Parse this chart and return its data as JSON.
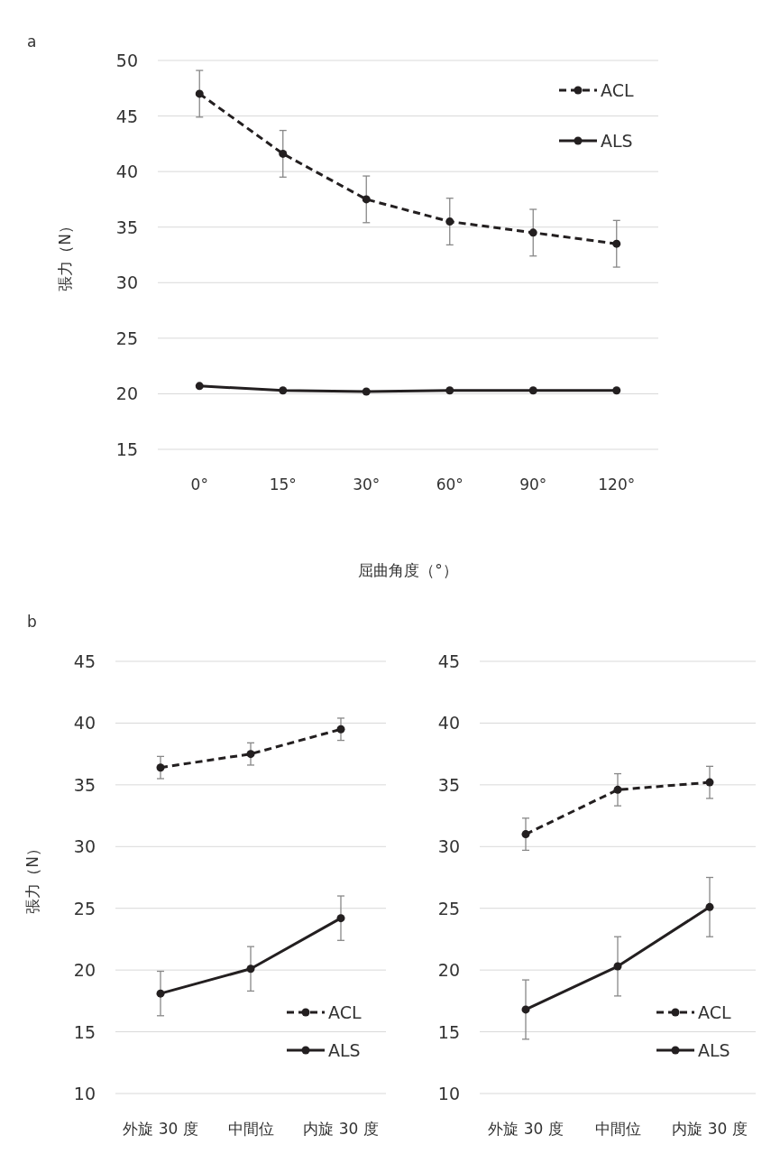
{
  "chart_data": [
    {
      "type": "line",
      "title": "a",
      "xlabel": "屈曲角度（°）",
      "ylabel": "張力（N）",
      "categories": [
        "0°",
        "15°",
        "30°",
        "60°",
        "90°",
        "120°"
      ],
      "ylim": [
        15,
        50
      ],
      "yticks": [
        15,
        20,
        25,
        30,
        35,
        40,
        45,
        50
      ],
      "grid": "y",
      "legend": "top right",
      "marker": "circle",
      "series": [
        {
          "name": "ACL",
          "color": "#231f20",
          "line_style": "dashed",
          "values": [
            47,
            41.6,
            37.5,
            35.5,
            34.5,
            33.5
          ],
          "errors": [
            2.1,
            2.1,
            2.1,
            2.1,
            2.1,
            2.1
          ]
        },
        {
          "name": "ALS",
          "color": "#231f20",
          "line_style": "solid",
          "values": [
            20.7,
            20.3,
            20.2,
            20.3,
            20.3,
            20.3
          ]
        }
      ]
    },
    {
      "type": "line",
      "title": "b",
      "ylabel": "張力（N）",
      "categories": [
        "外旋 30 度",
        "中間位",
        "内旋 30 度"
      ],
      "ylim": [
        10,
        45
      ],
      "yticks": [
        10,
        15,
        20,
        25,
        30,
        35,
        40,
        45
      ],
      "grid": "y",
      "legend": "bottom right",
      "marker": "circle",
      "series": [
        {
          "name": "ACL",
          "color": "#231f20",
          "line_style": "dashed",
          "values": [
            36.4,
            37.5,
            39.5
          ],
          "errors": [
            0.9,
            0.9,
            0.9
          ]
        },
        {
          "name": "ALS",
          "color": "#231f20",
          "line_style": "solid",
          "values": [
            18.1,
            20.1,
            24.2
          ],
          "errors": [
            1.8,
            1.8,
            1.8
          ]
        }
      ]
    },
    {
      "type": "line",
      "categories": [
        "外旋 30 度",
        "中間位",
        "内旋 30 度"
      ],
      "ylim": [
        10,
        45
      ],
      "yticks": [
        10,
        15,
        20,
        25,
        30,
        35,
        40,
        45
      ],
      "grid": "y",
      "legend": "bottom right",
      "marker": "circle",
      "series": [
        {
          "name": "ACL",
          "color": "#231f20",
          "line_style": "dashed",
          "values": [
            31,
            34.6,
            35.2
          ],
          "errors": [
            1.3,
            1.3,
            1.3
          ]
        },
        {
          "name": "ALS",
          "color": "#231f20",
          "line_style": "solid",
          "values": [
            16.8,
            20.3,
            25.1
          ],
          "errors": [
            2.4,
            2.4,
            2.4
          ]
        }
      ]
    }
  ]
}
